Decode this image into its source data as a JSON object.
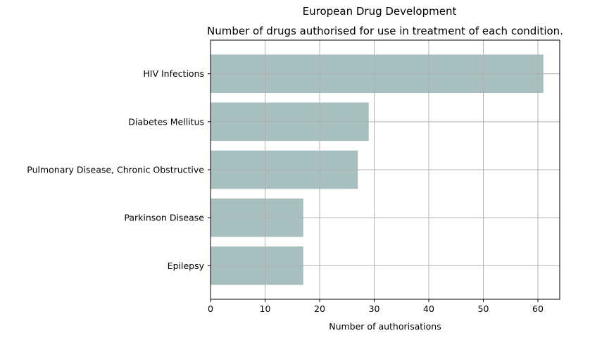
{
  "suptitle": "European Drug Development",
  "chart_data": {
    "type": "bar",
    "orientation": "horizontal",
    "title": "Number of drugs authorised for use in treatment of each condition.",
    "xlabel": "Number of authorisations",
    "ylabel": "",
    "categories": [
      "HIV Infections",
      "Diabetes Mellitus",
      "Pulmonary Disease, Chronic Obstructive",
      "Parkinson Disease",
      "Epilepsy"
    ],
    "values": [
      61,
      29,
      27,
      17,
      17
    ],
    "xlim": [
      0,
      64
    ],
    "xticks": [
      0,
      10,
      20,
      30,
      40,
      50,
      60
    ],
    "grid": true,
    "bar_color": "#a7bfbe",
    "grid_color": "#b0b0b0"
  }
}
